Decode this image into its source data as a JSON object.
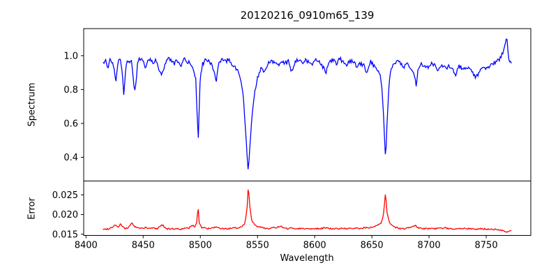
{
  "figure": {
    "background": "#ffffff",
    "title": "20120216_0910m65_139"
  },
  "chart_data": [
    {
      "type": "line",
      "id": "spectrum",
      "title": "20120216_0910m65_139",
      "ylabel": "Spectrum",
      "color": "#0000ff",
      "line_width": 1.3,
      "xlim": [
        8398,
        8789
      ],
      "ylim": [
        0.26,
        1.16
      ],
      "yticks": [
        1.0,
        0.8,
        0.6,
        0.4
      ],
      "yticklabels": [
        "1.0",
        "0.8",
        "0.6",
        "0.4"
      ],
      "grid": false,
      "legend": "none",
      "noise_amplitude": 0.012,
      "sample_step": 0.75,
      "noise_seed": 12345,
      "anchors": [
        [
          8415,
          0.95
        ],
        [
          8417,
          0.975
        ],
        [
          8419,
          0.93
        ],
        [
          8421,
          0.97
        ],
        [
          8423,
          0.955
        ],
        [
          8425,
          0.9
        ],
        [
          8426,
          0.84
        ],
        [
          8428,
          0.965
        ],
        [
          8430,
          0.975
        ],
        [
          8432,
          0.88
        ],
        [
          8433,
          0.77
        ],
        [
          8435,
          0.95
        ],
        [
          8437,
          0.975
        ],
        [
          8440,
          0.96
        ],
        [
          8442,
          0.83
        ],
        [
          8443,
          0.78
        ],
        [
          8445,
          0.95
        ],
        [
          8447,
          0.985
        ],
        [
          8450,
          0.965
        ],
        [
          8452,
          0.93
        ],
        [
          8455,
          0.985
        ],
        [
          8458,
          0.96
        ],
        [
          8461,
          0.975
        ],
        [
          8464,
          0.92
        ],
        [
          8466,
          0.875
        ],
        [
          8468,
          0.93
        ],
        [
          8471,
          0.985
        ],
        [
          8474,
          0.975
        ],
        [
          8477,
          0.95
        ],
        [
          8480,
          0.975
        ],
        [
          8483,
          0.93
        ],
        [
          8486,
          0.98
        ],
        [
          8489,
          0.96
        ],
        [
          8492,
          0.955
        ],
        [
          8494,
          0.92
        ],
        [
          8496,
          0.86
        ],
        [
          8497.5,
          0.6
        ],
        [
          8498,
          0.445
        ],
        [
          8498.7,
          0.62
        ],
        [
          8500,
          0.89
        ],
        [
          8502,
          0.95
        ],
        [
          8504,
          0.97
        ],
        [
          8507,
          0.975
        ],
        [
          8510,
          0.95
        ],
        [
          8512,
          0.91
        ],
        [
          8514,
          0.845
        ],
        [
          8516,
          0.95
        ],
        [
          8519,
          0.975
        ],
        [
          8522,
          0.965
        ],
        [
          8525,
          0.975
        ],
        [
          8528,
          0.95
        ],
        [
          8531,
          0.93
        ],
        [
          8534,
          0.89
        ],
        [
          8537,
          0.8
        ],
        [
          8539,
          0.62
        ],
        [
          8541,
          0.4
        ],
        [
          8542,
          0.318
        ],
        [
          8543,
          0.42
        ],
        [
          8545,
          0.62
        ],
        [
          8547,
          0.76
        ],
        [
          8550,
          0.875
        ],
        [
          8553,
          0.92
        ],
        [
          8556,
          0.9
        ],
        [
          8559,
          0.955
        ],
        [
          8562,
          0.975
        ],
        [
          8565,
          0.96
        ],
        [
          8568,
          0.945
        ],
        [
          8571,
          0.975
        ],
        [
          8574,
          0.955
        ],
        [
          8577,
          0.965
        ],
        [
          8580,
          0.905
        ],
        [
          8583,
          0.97
        ],
        [
          8586,
          0.98
        ],
        [
          8589,
          0.955
        ],
        [
          8592,
          0.975
        ],
        [
          8595,
          0.96
        ],
        [
          8598,
          0.945
        ],
        [
          8601,
          0.975
        ],
        [
          8604,
          0.97
        ],
        [
          8607,
          0.935
        ],
        [
          8610,
          0.905
        ],
        [
          8613,
          0.965
        ],
        [
          8616,
          0.975
        ],
        [
          8619,
          0.95
        ],
        [
          8622,
          0.985
        ],
        [
          8625,
          0.96
        ],
        [
          8628,
          0.945
        ],
        [
          8631,
          0.97
        ],
        [
          8634,
          0.96
        ],
        [
          8637,
          0.93
        ],
        [
          8640,
          0.955
        ],
        [
          8643,
          0.94
        ],
        [
          8646,
          0.9
        ],
        [
          8649,
          0.965
        ],
        [
          8652,
          0.94
        ],
        [
          8655,
          0.92
        ],
        [
          8657,
          0.895
        ],
        [
          8659,
          0.8
        ],
        [
          8660.5,
          0.62
        ],
        [
          8662,
          0.367
        ],
        [
          8663,
          0.55
        ],
        [
          8664.5,
          0.78
        ],
        [
          8666,
          0.9
        ],
        [
          8669,
          0.945
        ],
        [
          8672,
          0.965
        ],
        [
          8675,
          0.955
        ],
        [
          8678,
          0.935
        ],
        [
          8681,
          0.95
        ],
        [
          8684,
          0.93
        ],
        [
          8687,
          0.89
        ],
        [
          8689,
          0.82
        ],
        [
          8690.5,
          0.93
        ],
        [
          8693,
          0.955
        ],
        [
          8696,
          0.94
        ],
        [
          8699,
          0.925
        ],
        [
          8702,
          0.955
        ],
        [
          8705,
          0.945
        ],
        [
          8708,
          0.915
        ],
        [
          8711,
          0.945
        ],
        [
          8714,
          0.925
        ],
        [
          8717,
          0.935
        ],
        [
          8720,
          0.93
        ],
        [
          8723,
          0.885
        ],
        [
          8726,
          0.94
        ],
        [
          8729,
          0.925
        ],
        [
          8732,
          0.92
        ],
        [
          8735,
          0.935
        ],
        [
          8738,
          0.895
        ],
        [
          8741,
          0.875
        ],
        [
          8744,
          0.9
        ],
        [
          8747,
          0.935
        ],
        [
          8750,
          0.92
        ],
        [
          8753,
          0.935
        ],
        [
          8756,
          0.95
        ],
        [
          8759,
          0.96
        ],
        [
          8762,
          0.985
        ],
        [
          8765,
          1.03
        ],
        [
          8767,
          1.08
        ],
        [
          8768,
          1.12
        ],
        [
          8769,
          1.02
        ],
        [
          8770.5,
          0.965
        ],
        [
          8772,
          0.955
        ]
      ]
    },
    {
      "type": "line",
      "id": "error",
      "ylabel": "Error",
      "xlabel": "Wavelength",
      "color": "#ff0000",
      "line_width": 1.3,
      "xlim": [
        8398,
        8789
      ],
      "ylim": [
        0.0147,
        0.0285
      ],
      "yticks": [
        0.025,
        0.02,
        0.015
      ],
      "yticklabels": [
        "0.025",
        "0.020",
        "0.015"
      ],
      "xticks": [
        8400,
        8450,
        8500,
        8550,
        8600,
        8650,
        8700,
        8750
      ],
      "xticklabels": [
        "8400",
        "8450",
        "8500",
        "8550",
        "8600",
        "8650",
        "8700",
        "8750"
      ],
      "grid": false,
      "legend": "none",
      "noise_amplitude": 0.00018,
      "sample_step": 0.75,
      "noise_seed": 99,
      "anchors": [
        [
          8415,
          0.0162
        ],
        [
          8420,
          0.0164
        ],
        [
          8424,
          0.017
        ],
        [
          8426,
          0.0175
        ],
        [
          8428,
          0.0166
        ],
        [
          8430,
          0.0176
        ],
        [
          8432,
          0.0169
        ],
        [
          8434,
          0.0164
        ],
        [
          8437,
          0.0166
        ],
        [
          8440,
          0.018
        ],
        [
          8442,
          0.017
        ],
        [
          8445,
          0.0166
        ],
        [
          8448,
          0.0165
        ],
        [
          8452,
          0.0167
        ],
        [
          8455,
          0.0164
        ],
        [
          8458,
          0.0166
        ],
        [
          8462,
          0.0164
        ],
        [
          8465,
          0.0171
        ],
        [
          8467,
          0.0174
        ],
        [
          8470,
          0.0164
        ],
        [
          8474,
          0.0163
        ],
        [
          8478,
          0.0164
        ],
        [
          8482,
          0.0163
        ],
        [
          8486,
          0.0164
        ],
        [
          8490,
          0.0166
        ],
        [
          8493,
          0.0172
        ],
        [
          8495,
          0.0169
        ],
        [
          8497,
          0.018
        ],
        [
          8498,
          0.0225
        ],
        [
          8499,
          0.018
        ],
        [
          8501,
          0.0167
        ],
        [
          8504,
          0.0166
        ],
        [
          8507,
          0.0164
        ],
        [
          8510,
          0.0165
        ],
        [
          8513,
          0.0168
        ],
        [
          8516,
          0.0165
        ],
        [
          8520,
          0.0164
        ],
        [
          8524,
          0.0164
        ],
        [
          8528,
          0.0165
        ],
        [
          8532,
          0.0166
        ],
        [
          8536,
          0.0169
        ],
        [
          8539,
          0.0177
        ],
        [
          8541,
          0.022
        ],
        [
          8542,
          0.0277
        ],
        [
          8543,
          0.0228
        ],
        [
          8545,
          0.0185
        ],
        [
          8548,
          0.0172
        ],
        [
          8551,
          0.0168
        ],
        [
          8554,
          0.0168
        ],
        [
          8557,
          0.0165
        ],
        [
          8560,
          0.0164
        ],
        [
          8563,
          0.0167
        ],
        [
          8566,
          0.0165
        ],
        [
          8570,
          0.0171
        ],
        [
          8573,
          0.0165
        ],
        [
          8576,
          0.0164
        ],
        [
          8580,
          0.0166
        ],
        [
          8584,
          0.0164
        ],
        [
          8588,
          0.0165
        ],
        [
          8592,
          0.0164
        ],
        [
          8596,
          0.0164
        ],
        [
          8600,
          0.0165
        ],
        [
          8604,
          0.0164
        ],
        [
          8608,
          0.0166
        ],
        [
          8612,
          0.0165
        ],
        [
          8616,
          0.0164
        ],
        [
          8620,
          0.0164
        ],
        [
          8624,
          0.0165
        ],
        [
          8628,
          0.0164
        ],
        [
          8632,
          0.0164
        ],
        [
          8636,
          0.0165
        ],
        [
          8640,
          0.0165
        ],
        [
          8644,
          0.0167
        ],
        [
          8648,
          0.0166
        ],
        [
          8652,
          0.0169
        ],
        [
          8655,
          0.0172
        ],
        [
          8658,
          0.0178
        ],
        [
          8660,
          0.0195
        ],
        [
          8662,
          0.0257
        ],
        [
          8663,
          0.021
        ],
        [
          8665,
          0.0182
        ],
        [
          8668,
          0.0172
        ],
        [
          8671,
          0.0167
        ],
        [
          8674,
          0.0165
        ],
        [
          8678,
          0.0164
        ],
        [
          8682,
          0.0166
        ],
        [
          8685,
          0.0168
        ],
        [
          8688,
          0.0173
        ],
        [
          8690,
          0.0166
        ],
        [
          8694,
          0.0164
        ],
        [
          8698,
          0.0164
        ],
        [
          8702,
          0.0166
        ],
        [
          8706,
          0.0164
        ],
        [
          8710,
          0.0165
        ],
        [
          8714,
          0.0166
        ],
        [
          8718,
          0.0164
        ],
        [
          8722,
          0.0164
        ],
        [
          8726,
          0.0165
        ],
        [
          8730,
          0.0165
        ],
        [
          8734,
          0.0164
        ],
        [
          8738,
          0.0164
        ],
        [
          8742,
          0.0163
        ],
        [
          8746,
          0.0164
        ],
        [
          8750,
          0.0163
        ],
        [
          8754,
          0.0163
        ],
        [
          8758,
          0.0162
        ],
        [
          8762,
          0.0161
        ],
        [
          8765,
          0.016
        ],
        [
          8767,
          0.0154
        ],
        [
          8769,
          0.0157
        ],
        [
          8772,
          0.0158
        ]
      ]
    }
  ],
  "style": {
    "spine_color": "#000000",
    "tick_color": "#000000",
    "text_color": "#000000"
  }
}
